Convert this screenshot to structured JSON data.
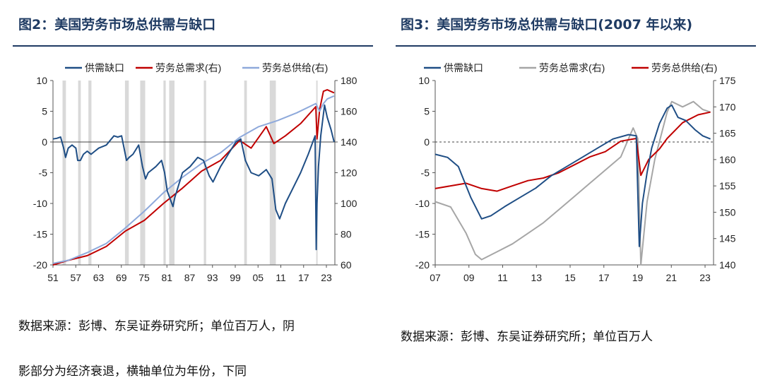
{
  "left": {
    "title": "图2：美国劳务市场总供需与缺口",
    "source_line1": "数据来源：彭博、东吴证券研究所；单位百万人，阴",
    "source_line2": "影部分为经济衰退，横轴单位为年份，下同"
  },
  "right": {
    "title": "图3：美国劳务市场总供需与缺口(2007 年以来)",
    "source": "数据来源：彭博、东吴证券研究所；单位百万人"
  },
  "colors": {
    "gap": "#1f4e85",
    "demand": "#c00000",
    "supply_light": "#8ea9db",
    "supply_grey": "#a6a6a6",
    "recession": "#d9d9d9",
    "axis": "#555555",
    "title": "#1f3b63"
  },
  "chart_data": [
    {
      "type": "line",
      "title": "美国劳务市场总供需与缺口",
      "x_ticks": [
        "51",
        "57",
        "63",
        "69",
        "75",
        "81",
        "87",
        "93",
        "99",
        "05",
        "11",
        "17",
        "23"
      ],
      "x_range": [
        1951,
        2025
      ],
      "y_left": {
        "range": [
          -20,
          10
        ],
        "ticks": [
          "10",
          "5",
          "0",
          "-5",
          "-10",
          "-15",
          "-20"
        ]
      },
      "y_right": {
        "range": [
          60,
          180
        ],
        "ticks": [
          "180",
          "160",
          "140",
          "120",
          "100",
          "80",
          "60"
        ]
      },
      "legend": [
        "供需缺口",
        "劳务总需求(右)",
        "劳务总供给(右)"
      ],
      "recessions": [
        [
          1953.5,
          1954.4
        ],
        [
          1957.6,
          1958.3
        ],
        [
          1960.3,
          1961.1
        ],
        [
          1969.9,
          1970.9
        ],
        [
          1973.9,
          1975.2
        ],
        [
          1980.0,
          1980.6
        ],
        [
          1981.5,
          1982.9
        ],
        [
          1990.6,
          1991.2
        ],
        [
          2001.2,
          2001.9
        ],
        [
          2007.9,
          2009.5
        ],
        [
          2020.1,
          2020.4
        ]
      ],
      "series": [
        {
          "name": "供需缺口",
          "axis": "left",
          "x": [
            1951,
            1952,
            1953,
            1953.8,
            1954.3,
            1955,
            1956,
            1957,
            1957.5,
            1958.2,
            1959,
            1960,
            1961,
            1962,
            1963,
            1965,
            1967,
            1968,
            1969,
            1970.3,
            1971,
            1972,
            1973.5,
            1974.5,
            1975.3,
            1976,
            1978,
            1979.5,
            1980.3,
            1981,
            1982.5,
            1983,
            1985,
            1987,
            1989,
            1990.5,
            1992,
            1993,
            1995,
            1997,
            1999,
            2000.3,
            2001.5,
            2003,
            2005,
            2007,
            2008.5,
            2009.5,
            2010.5,
            2012,
            2014,
            2016,
            2018,
            2019.8,
            2020.1,
            2020.3,
            2020.7,
            2021.3,
            2022.3,
            2023,
            2024,
            2024.8
          ],
          "values": [
            0.5,
            0.6,
            0.8,
            -1,
            -2.5,
            -1,
            -0.5,
            -1,
            -3,
            -3,
            -2,
            -1.5,
            -2,
            -1.5,
            -1,
            -0.5,
            1,
            0.8,
            1,
            -3,
            -2.5,
            -2,
            -0.5,
            -4,
            -6,
            -5,
            -4,
            -3,
            -5,
            -8,
            -10.5,
            -9,
            -5,
            -4,
            -2.5,
            -3,
            -5.5,
            -6.5,
            -4,
            -2,
            0,
            0.5,
            -3,
            -5,
            -5.5,
            -4.5,
            -6,
            -11,
            -12.5,
            -10,
            -7.5,
            -5,
            -2,
            1,
            -17.5,
            -10,
            -4,
            1,
            6,
            4,
            2,
            0
          ]
        },
        {
          "name": "劳务总需求(右)",
          "axis": "right",
          "x": [
            1951,
            1955,
            1960,
            1965,
            1970,
            1975,
            1980,
            1985,
            1990,
            1995,
            2000,
            2003,
            2007,
            2009,
            2012,
            2016,
            2020,
            2020.3,
            2021,
            2022,
            2023,
            2024.8
          ],
          "values": [
            60,
            63,
            66,
            72,
            82,
            89,
            100,
            110,
            121,
            128,
            141,
            136,
            150,
            139,
            144,
            152,
            163,
            142,
            161,
            173,
            174,
            172
          ]
        },
        {
          "name": "劳务总供给(右)",
          "axis": "right",
          "x": [
            1951,
            1955,
            1960,
            1965,
            1970,
            1975,
            1980,
            1985,
            1990,
            1995,
            2000,
            2005,
            2010,
            2015,
            2020,
            2021,
            2022,
            2023,
            2024.8
          ],
          "values": [
            61,
            63,
            68,
            74,
            84,
            95,
            107,
            117,
            126,
            133,
            143,
            150,
            154,
            159,
            165,
            160,
            165,
            168,
            170
          ]
        }
      ]
    },
    {
      "type": "line",
      "title": "美国劳务市场总供需与缺口(2007 年以来)",
      "x_ticks": [
        "07",
        "09",
        "11",
        "13",
        "15",
        "17",
        "19",
        "21",
        "23"
      ],
      "x_range": [
        2007,
        2025
      ],
      "y_left": {
        "range": [
          -20,
          10
        ],
        "ticks": [
          "10",
          "5",
          "0",
          "-5",
          "-10",
          "-15",
          "-20"
        ]
      },
      "y_right": {
        "range": [
          140,
          175
        ],
        "ticks": [
          "175",
          "170",
          "165",
          "160",
          "155",
          "150",
          "145",
          "140"
        ]
      },
      "legend": [
        "供需缺口",
        "劳务总需求(右)",
        "劳务总供给(右)"
      ],
      "series": [
        {
          "name": "供需缺口",
          "axis": "left",
          "x": [
            2007,
            2007.8,
            2008.5,
            2009.3,
            2010,
            2010.6,
            2011.5,
            2012.5,
            2013.5,
            2014.5,
            2015.5,
            2016.5,
            2017.5,
            2018.5,
            2019.5,
            2020,
            2020.2,
            2020.4,
            2020.7,
            2021,
            2021.5,
            2022,
            2022.3,
            2022.7,
            2023.2,
            2023.8,
            2024.3,
            2024.8
          ],
          "values": [
            -2,
            -2.5,
            -4,
            -9,
            -12.5,
            -12,
            -10.5,
            -9,
            -7.5,
            -5.5,
            -4,
            -2.5,
            -1,
            0.5,
            1.2,
            1,
            -17,
            -10,
            -5,
            -1,
            3,
            5.5,
            6,
            4,
            3.5,
            2,
            1,
            0.5
          ]
        },
        {
          "name": "劳务总需求(右)",
          "axis": "right",
          "x": [
            2007,
            2008,
            2009,
            2009.6,
            2010,
            2011,
            2012,
            2013,
            2014,
            2015,
            2016,
            2017,
            2018,
            2019,
            2019.8,
            2020.1,
            2020.3,
            2020.7,
            2021.2,
            2022,
            2022.3,
            2023,
            2023.7,
            2024.3,
            2024.8
          ],
          "values": [
            152,
            151,
            146,
            142,
            141,
            142.5,
            144,
            146,
            148,
            150.5,
            153,
            155.5,
            158,
            160.5,
            166,
            164,
            140,
            152,
            160,
            169,
            171,
            170,
            171,
            169.5,
            169
          ]
        },
        {
          "name": "劳务总供给(右)",
          "axis": "right",
          "x": [
            2007,
            2008,
            2009,
            2010,
            2011,
            2012,
            2013,
            2014,
            2015,
            2016,
            2017,
            2018,
            2019,
            2020,
            2020.3,
            2020.8,
            2021.5,
            2022,
            2023,
            2024,
            2024.8
          ],
          "values": [
            154.5,
            155,
            155.5,
            154.5,
            154,
            155,
            156,
            156.5,
            157.5,
            159,
            160.5,
            161.5,
            163.5,
            164,
            157,
            160,
            162,
            164,
            167,
            168.5,
            169
          ]
        }
      ]
    }
  ]
}
